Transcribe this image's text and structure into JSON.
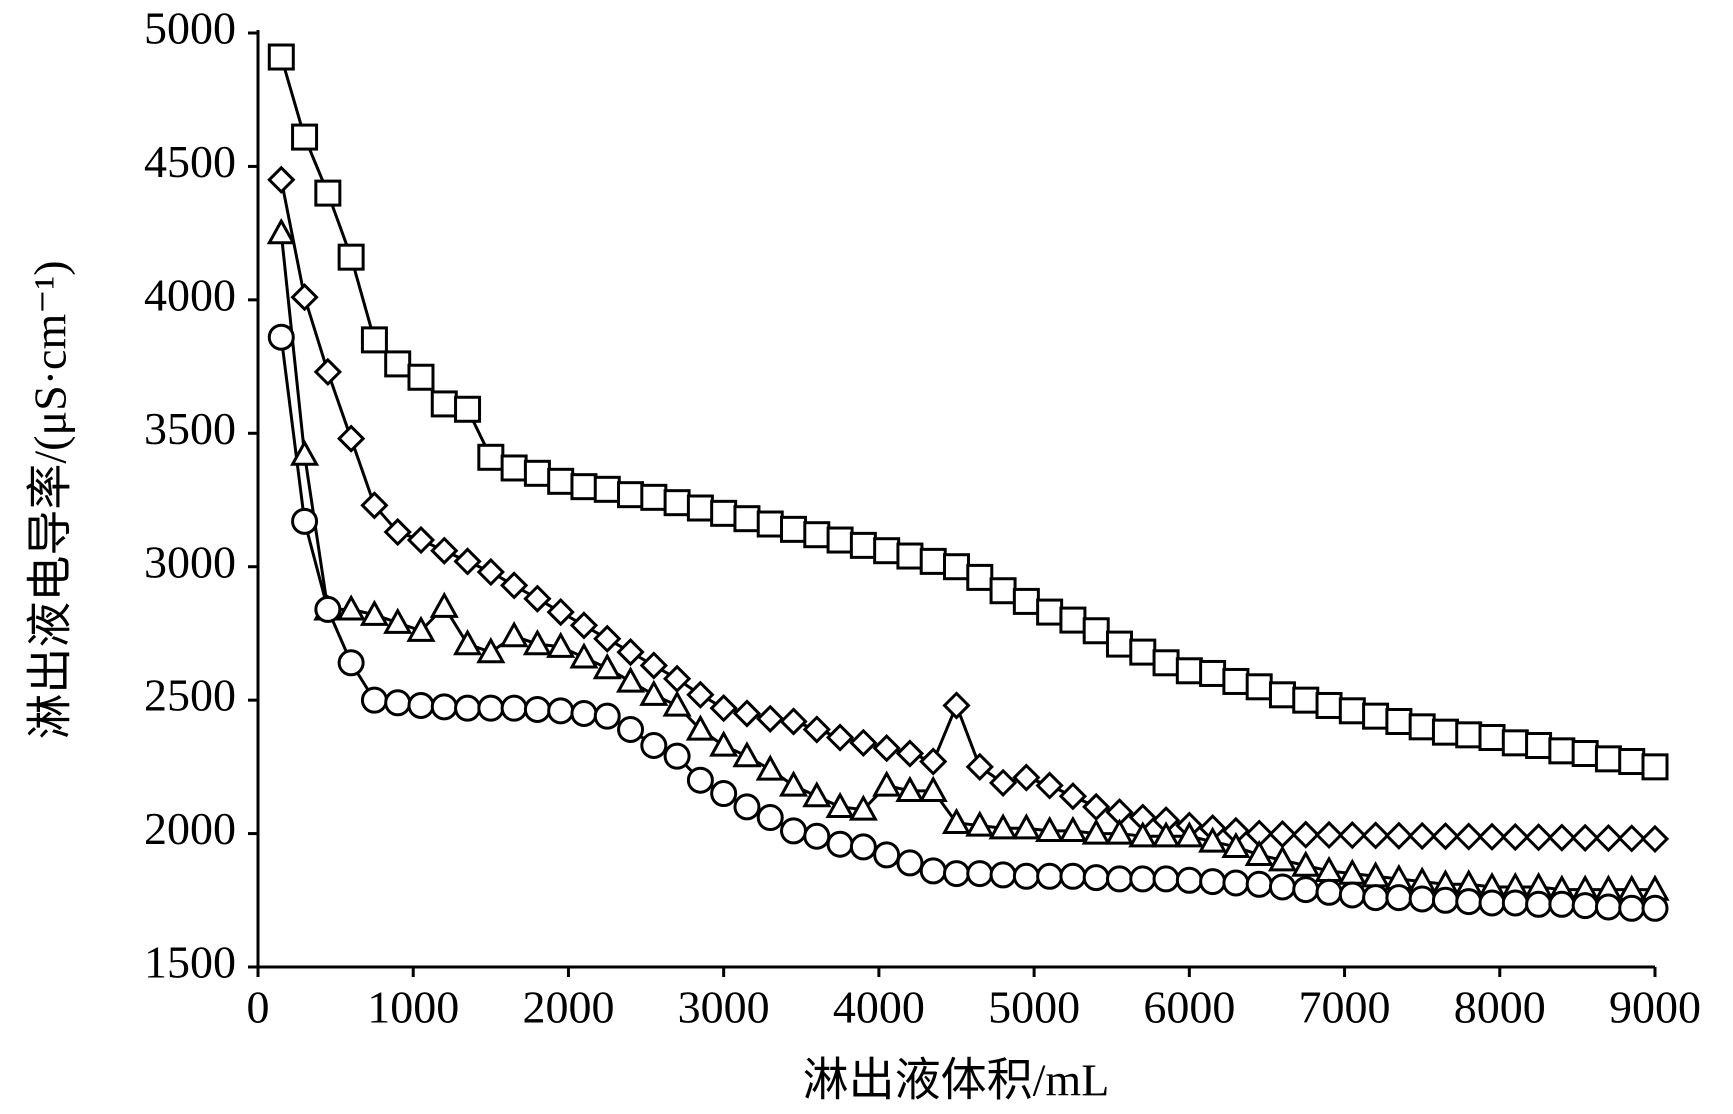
{
  "chart_data": {
    "type": "line",
    "x_label": "淋出液体积/mL",
    "y_label": "淋出液电导率/(μS·cm⁻¹)",
    "x": [
      150,
      300,
      450,
      600,
      750,
      900,
      1050,
      1200,
      1350,
      1500,
      1650,
      1800,
      1950,
      2100,
      2250,
      2400,
      2550,
      2700,
      2850,
      3000,
      3150,
      3300,
      3450,
      3600,
      3750,
      3900,
      4050,
      4200,
      4350,
      4500,
      4650,
      4800,
      4950,
      5100,
      5250,
      5400,
      5550,
      5700,
      5850,
      6000,
      6150,
      6300,
      6450,
      6600,
      6750,
      6900,
      7050,
      7200,
      7350,
      7500,
      7650,
      7800,
      7950,
      8100,
      8250,
      8400,
      8550,
      8700,
      8850,
      9000
    ],
    "series": [
      {
        "marker": "square",
        "color": "#000000",
        "values": [
          4910,
          4610,
          4400,
          4160,
          3850,
          3760,
          3710,
          3610,
          3590,
          3410,
          3370,
          3350,
          3320,
          3300,
          3290,
          3270,
          3260,
          3240,
          3220,
          3200,
          3180,
          3160,
          3140,
          3120,
          3100,
          3080,
          3060,
          3040,
          3020,
          3000,
          2960,
          2910,
          2870,
          2830,
          2800,
          2760,
          2710,
          2680,
          2640,
          2610,
          2600,
          2570,
          2550,
          2520,
          2500,
          2480,
          2460,
          2440,
          2420,
          2400,
          2380,
          2370,
          2360,
          2340,
          2330,
          2310,
          2300,
          2280,
          2270,
          2250
        ]
      },
      {
        "marker": "diamond",
        "color": "#000000",
        "values": [
          4450,
          4010,
          3730,
          3480,
          3230,
          3130,
          3100,
          3060,
          3020,
          2980,
          2930,
          2880,
          2830,
          2780,
          2730,
          2680,
          2630,
          2580,
          2520,
          2470,
          2450,
          2430,
          2420,
          2390,
          2360,
          2340,
          2320,
          2300,
          2270,
          2480,
          2250,
          2190,
          2210,
          2180,
          2140,
          2100,
          2080,
          2060,
          2050,
          2030,
          2020,
          2010,
          2000,
          1998,
          1996,
          1995,
          1994,
          1993,
          1992,
          1991,
          1990,
          1989,
          1988,
          1987,
          1986,
          1985,
          1984,
          1983,
          1982,
          1980
        ]
      },
      {
        "marker": "triangle",
        "color": "#000000",
        "values": [
          4250,
          3420,
          2840,
          2840,
          2820,
          2790,
          2760,
          2850,
          2710,
          2680,
          2740,
          2710,
          2700,
          2660,
          2620,
          2570,
          2520,
          2480,
          2390,
          2330,
          2290,
          2240,
          2180,
          2140,
          2100,
          2090,
          2180,
          2160,
          2160,
          2040,
          2030,
          2020,
          2020,
          2010,
          2010,
          2000,
          2000,
          1990,
          1990,
          1990,
          1970,
          1950,
          1920,
          1900,
          1880,
          1860,
          1850,
          1840,
          1830,
          1820,
          1810,
          1810,
          1800,
          1800,
          1800,
          1790,
          1790,
          1790,
          1790,
          1790
        ]
      },
      {
        "marker": "circle",
        "color": "#000000",
        "values": [
          3860,
          3170,
          2840,
          2640,
          2500,
          2490,
          2480,
          2475,
          2470,
          2470,
          2470,
          2465,
          2460,
          2450,
          2440,
          2390,
          2330,
          2290,
          2200,
          2150,
          2100,
          2060,
          2010,
          1990,
          1960,
          1950,
          1920,
          1890,
          1860,
          1850,
          1850,
          1845,
          1840,
          1840,
          1840,
          1835,
          1830,
          1830,
          1830,
          1825,
          1820,
          1815,
          1810,
          1800,
          1790,
          1780,
          1770,
          1760,
          1760,
          1755,
          1750,
          1745,
          1740,
          1740,
          1735,
          1735,
          1730,
          1725,
          1720,
          1720
        ]
      }
    ],
    "xlim": [
      0,
      9000
    ],
    "xticks": [
      0,
      1000,
      2000,
      3000,
      4000,
      5000,
      6000,
      7000,
      8000,
      9000
    ],
    "ylim": [
      1500,
      5000
    ],
    "yticks": [
      1500,
      2000,
      2500,
      3000,
      3500,
      4000,
      4500,
      5000
    ],
    "grid": false
  }
}
